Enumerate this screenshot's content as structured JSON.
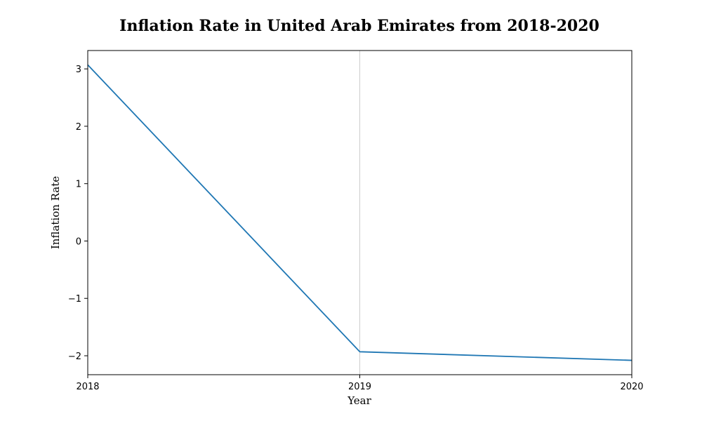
{
  "chart_data": {
    "type": "line",
    "title": "Inflation Rate in United Arab Emirates from 2018-2020",
    "xlabel": "Year",
    "ylabel": "Inflation Rate",
    "x": [
      "2018",
      "2019",
      "2020"
    ],
    "xlim": [
      2018,
      2020
    ],
    "ylim": [
      -2.33,
      3.32
    ],
    "yticks": [
      3,
      2,
      1,
      0,
      -1,
      -2
    ],
    "ytick_labels": [
      "3",
      "2",
      "1",
      "0",
      "−1",
      "−2"
    ],
    "grid": "vertical line at 2019",
    "series": [
      {
        "values": [
          3.07,
          -1.93,
          -2.08
        ]
      }
    ],
    "colors": {
      "line": "#1f77b4",
      "grid": "#cccccc",
      "axes": "#000000"
    }
  }
}
